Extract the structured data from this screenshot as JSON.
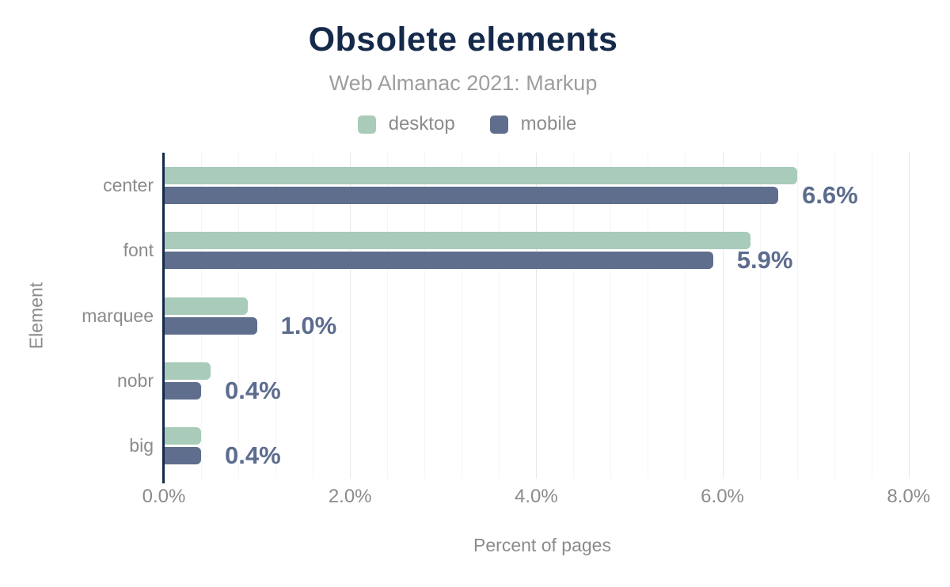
{
  "header": {
    "title": "Obsolete elements",
    "subtitle": "Web Almanac 2021: Markup"
  },
  "legend": {
    "items": [
      {
        "label": "desktop",
        "color": "#a8cbba"
      },
      {
        "label": "mobile",
        "color": "#5f6e8c"
      }
    ]
  },
  "x_axis": {
    "title": "Percent of pages",
    "ticks": [
      "0.0%",
      "2.0%",
      "4.0%",
      "6.0%",
      "8.0%"
    ],
    "major_interval": 2.0,
    "minor_interval": 0.4
  },
  "y_axis": {
    "title": "Element"
  },
  "chart_data": {
    "type": "bar",
    "orientation": "horizontal",
    "title": "Obsolete elements",
    "subtitle": "Web Almanac 2021: Markup",
    "xlabel": "Percent of pages",
    "ylabel": "Element",
    "xlim": [
      0,
      8.13
    ],
    "grid": true,
    "legend_position": "top",
    "categories": [
      "center",
      "font",
      "marquee",
      "nobr",
      "big"
    ],
    "series": [
      {
        "name": "desktop",
        "color": "#a8cbba",
        "values": [
          6.8,
          6.3,
          0.9,
          0.5,
          0.4
        ]
      },
      {
        "name": "mobile",
        "color": "#5f6e8c",
        "values": [
          6.6,
          5.9,
          1.0,
          0.4,
          0.4
        ]
      }
    ],
    "value_labels": [
      "6.6%",
      "5.9%",
      "1.0%",
      "0.4%",
      "0.4%"
    ],
    "value_label_series": "mobile"
  },
  "colors": {
    "title": "#152a4a",
    "subtitle": "#9e9e9e",
    "axis_text": "#8b8b8b",
    "value_label": "#5c6c8e",
    "axis_line": "#16284a",
    "grid_major": "#e8e8e8",
    "grid_minor": "#f5f5f5",
    "background": "#ffffff"
  }
}
